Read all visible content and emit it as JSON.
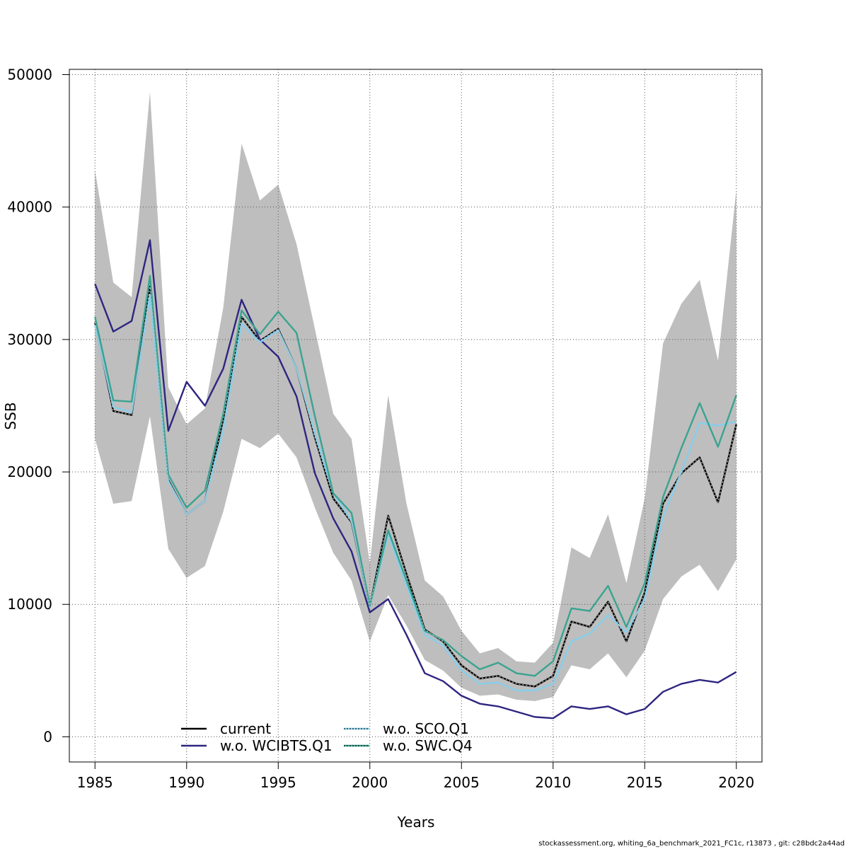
{
  "chart_data": {
    "type": "line",
    "xlabel": "Years",
    "ylabel": "SSB",
    "xlim": [
      1983.6,
      2021.4
    ],
    "ylim": [
      -1900,
      50400
    ],
    "x_ticks": [
      1985,
      1990,
      1995,
      2000,
      2005,
      2010,
      2015,
      2020
    ],
    "y_ticks": [
      0,
      10000,
      20000,
      30000,
      40000,
      50000
    ],
    "grid": true,
    "legend_position": "bottom-center",
    "x": [
      1985,
      1986,
      1987,
      1988,
      1989,
      1990,
      1991,
      1992,
      1993,
      1994,
      1995,
      1996,
      1997,
      1998,
      1999,
      2000,
      2001,
      2002,
      2003,
      2004,
      2005,
      2006,
      2007,
      2008,
      2009,
      2010,
      2011,
      2012,
      2013,
      2014,
      2015,
      2016,
      2017,
      2018,
      2019,
      2020
    ],
    "band": {
      "color": "#bebebe",
      "upper": [
        42800,
        34300,
        33200,
        48700,
        26400,
        23600,
        24800,
        32400,
        44800,
        40500,
        41700,
        37200,
        30800,
        24400,
        22500,
        13100,
        25800,
        17600,
        11800,
        10600,
        8000,
        6300,
        6700,
        5700,
        5600,
        7100,
        14300,
        13500,
        16800,
        11600,
        18000,
        29700,
        32700,
        34500,
        28400,
        41300
      ],
      "lower": [
        22500,
        17600,
        17800,
        24200,
        14200,
        12000,
        12900,
        17000,
        22500,
        21800,
        22900,
        21100,
        17300,
        13900,
        11800,
        7200,
        10700,
        8400,
        5800,
        5000,
        3700,
        3100,
        3200,
        2800,
        2700,
        3000,
        5400,
        5100,
        6300,
        4500,
        6500,
        10400,
        12100,
        13000,
        11000,
        13400
      ]
    },
    "series": [
      {
        "name": "current",
        "color": "#000000",
        "dash": "",
        "values": [
          31300,
          24600,
          24300,
          34000,
          19400,
          16800,
          17800,
          24000,
          31700,
          29900,
          30800,
          27800,
          22600,
          18000,
          16200,
          9800,
          16700,
          12300,
          8100,
          7200,
          5400,
          4400,
          4600,
          4000,
          3800,
          4600,
          8700,
          8300,
          10200,
          7200,
          10900,
          17600,
          19900,
          21100,
          17700,
          23600
        ]
      },
      {
        "name": "w.o. WCIBTS.Q1",
        "color": "#2e2580",
        "dash": "",
        "values": [
          34200,
          30600,
          31400,
          37500,
          23100,
          26800,
          25000,
          27800,
          33000,
          30000,
          28700,
          25700,
          19900,
          16500,
          14000,
          9400,
          10400,
          7700,
          4800,
          4200,
          3100,
          2500,
          2300,
          1900,
          1500,
          1400,
          2300,
          2100,
          2300,
          1700,
          2100,
          3400,
          4000,
          4300,
          4100,
          4900
        ]
      },
      {
        "name": "w.o. SCO.Q1",
        "color": "#87ceeb",
        "dash": "",
        "values": [
          31100,
          24900,
          24500,
          33400,
          19300,
          16800,
          17800,
          23200,
          31200,
          29800,
          30700,
          27800,
          22900,
          18400,
          16300,
          9800,
          15300,
          11400,
          7700,
          6900,
          5000,
          4000,
          4100,
          3500,
          3500,
          4000,
          7200,
          7800,
          9200,
          7900,
          10400,
          16600,
          20000,
          23700,
          23500,
          23800
        ]
      },
      {
        "name": "w.o. SWC.Q4",
        "color": "#3aa390",
        "dash": "",
        "values": [
          31700,
          25400,
          25300,
          34800,
          19800,
          17300,
          18600,
          24400,
          32200,
          30400,
          32100,
          30500,
          24200,
          18400,
          16900,
          9900,
          15600,
          11800,
          8000,
          7300,
          6100,
          5100,
          5600,
          4800,
          4600,
          5700,
          9700,
          9500,
          11400,
          8300,
          11600,
          18100,
          21800,
          25200,
          21900,
          25800
        ]
      }
    ]
  },
  "footer": {
    "text": "stockassessment.org, whiting_6a_benchmark_2021_FC1c, r13873 , git: c28bdc2a44ad"
  }
}
